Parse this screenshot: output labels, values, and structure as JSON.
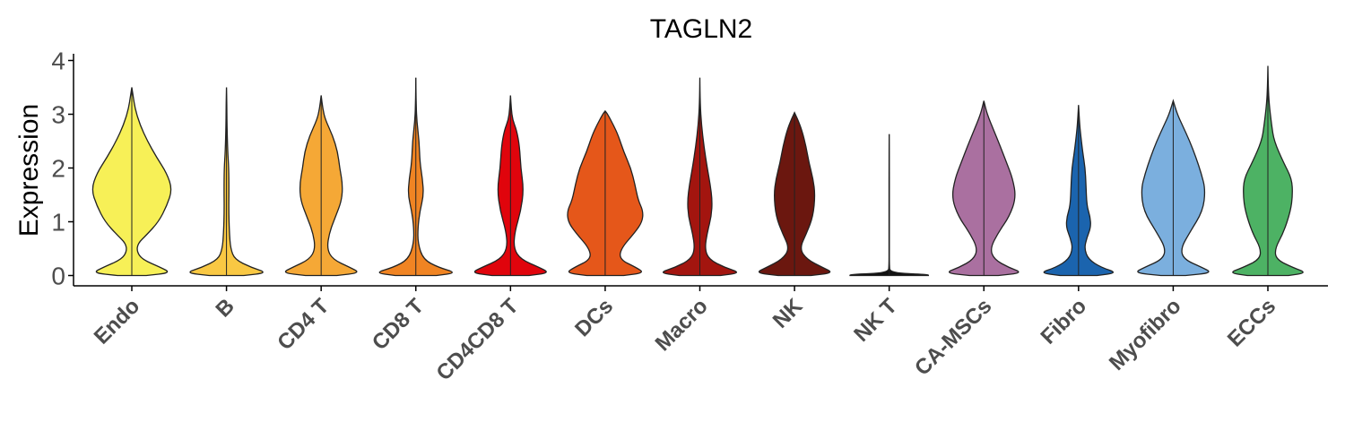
{
  "chart_data": {
    "type": "violin",
    "title": "TAGLN2",
    "ylabel": "Expression",
    "xlabel": "",
    "ylim": [
      -0.15,
      4.15
    ],
    "yticks": [
      0,
      1,
      2,
      3,
      4
    ],
    "grid": false,
    "legend": "none",
    "categories": [
      "Endo",
      "B",
      "CD4 T",
      "CD8 T",
      "CD4CD8 T",
      "DCs",
      "Macro",
      "NK",
      "NK T",
      "CA-MSCs",
      "Fibro",
      "Myofibro",
      "ECCs"
    ],
    "colors": [
      "#F7F057",
      "#F9C843",
      "#F5A836",
      "#F08423",
      "#E0040C",
      "#E5571A",
      "#A3150F",
      "#6B170F",
      "#111111",
      "#AA70A0",
      "#1B64AE",
      "#7BAFDE",
      "#4DB264"
    ],
    "max_values": [
      3.5,
      3.5,
      3.35,
      3.68,
      3.35,
      3.06,
      3.68,
      3.03,
      2.63,
      3.25,
      3.17,
      3.25,
      3.9
    ],
    "profiles": [
      [
        [
          0,
          0.35
        ],
        [
          0.05,
          0.95
        ],
        [
          0.15,
          0.7
        ],
        [
          0.3,
          0.25
        ],
        [
          0.45,
          0.12
        ],
        [
          0.6,
          0.15
        ],
        [
          0.75,
          0.35
        ],
        [
          1.0,
          0.65
        ],
        [
          1.3,
          0.85
        ],
        [
          1.6,
          0.98
        ],
        [
          1.9,
          0.85
        ],
        [
          2.2,
          0.6
        ],
        [
          2.5,
          0.38
        ],
        [
          2.8,
          0.2
        ],
        [
          3.1,
          0.08
        ],
        [
          3.35,
          0.03
        ],
        [
          3.5,
          0.0
        ]
      ],
      [
        [
          0,
          0.42
        ],
        [
          0.05,
          1.0
        ],
        [
          0.15,
          0.6
        ],
        [
          0.3,
          0.2
        ],
        [
          0.5,
          0.1
        ],
        [
          0.8,
          0.07
        ],
        [
          1.2,
          0.055
        ],
        [
          1.6,
          0.06
        ],
        [
          2.0,
          0.055
        ],
        [
          2.3,
          0.03
        ],
        [
          2.8,
          0.012
        ],
        [
          3.2,
          0.008
        ],
        [
          3.5,
          0.0
        ]
      ],
      [
        [
          0,
          0.38
        ],
        [
          0.05,
          0.95
        ],
        [
          0.15,
          0.7
        ],
        [
          0.3,
          0.28
        ],
        [
          0.5,
          0.14
        ],
        [
          0.8,
          0.2
        ],
        [
          1.1,
          0.35
        ],
        [
          1.4,
          0.5
        ],
        [
          1.7,
          0.52
        ],
        [
          2.0,
          0.45
        ],
        [
          2.3,
          0.4
        ],
        [
          2.6,
          0.28
        ],
        [
          2.9,
          0.1
        ],
        [
          3.1,
          0.04
        ],
        [
          3.35,
          0.0
        ]
      ],
      [
        [
          0,
          0.5
        ],
        [
          0.05,
          1.0
        ],
        [
          0.15,
          0.55
        ],
        [
          0.3,
          0.18
        ],
        [
          0.6,
          0.05
        ],
        [
          0.9,
          0.05
        ],
        [
          1.2,
          0.1
        ],
        [
          1.5,
          0.19
        ],
        [
          1.8,
          0.16
        ],
        [
          2.1,
          0.1
        ],
        [
          2.5,
          0.08
        ],
        [
          2.9,
          0.02
        ],
        [
          3.3,
          0.005
        ],
        [
          3.68,
          0.0
        ]
      ],
      [
        [
          0,
          0.45
        ],
        [
          0.05,
          0.95
        ],
        [
          0.15,
          0.7
        ],
        [
          0.3,
          0.25
        ],
        [
          0.5,
          0.08
        ],
        [
          0.8,
          0.1
        ],
        [
          1.2,
          0.25
        ],
        [
          1.6,
          0.32
        ],
        [
          2.0,
          0.25
        ],
        [
          2.4,
          0.22
        ],
        [
          2.7,
          0.15
        ],
        [
          2.9,
          0.05
        ],
        [
          3.1,
          0.02
        ],
        [
          3.35,
          0.0
        ]
      ],
      [
        [
          0,
          0.45
        ],
        [
          0.05,
          0.95
        ],
        [
          0.15,
          0.75
        ],
        [
          0.3,
          0.35
        ],
        [
          0.5,
          0.38
        ],
        [
          0.8,
          0.72
        ],
        [
          1.0,
          0.9
        ],
        [
          1.2,
          0.92
        ],
        [
          1.4,
          0.8
        ],
        [
          1.7,
          0.72
        ],
        [
          2.0,
          0.62
        ],
        [
          2.3,
          0.45
        ],
        [
          2.6,
          0.32
        ],
        [
          2.8,
          0.2
        ],
        [
          3.0,
          0.06
        ],
        [
          3.06,
          0.0
        ]
      ],
      [
        [
          0,
          0.5
        ],
        [
          0.05,
          1.0
        ],
        [
          0.15,
          0.6
        ],
        [
          0.3,
          0.22
        ],
        [
          0.5,
          0.12
        ],
        [
          0.8,
          0.18
        ],
        [
          1.1,
          0.28
        ],
        [
          1.4,
          0.3
        ],
        [
          1.7,
          0.25
        ],
        [
          2.0,
          0.18
        ],
        [
          2.4,
          0.1
        ],
        [
          2.8,
          0.04
        ],
        [
          3.2,
          0.008
        ],
        [
          3.68,
          0.0
        ]
      ],
      [
        [
          0,
          0.4
        ],
        [
          0.05,
          0.95
        ],
        [
          0.15,
          0.68
        ],
        [
          0.3,
          0.3
        ],
        [
          0.5,
          0.12
        ],
        [
          0.8,
          0.3
        ],
        [
          1.1,
          0.45
        ],
        [
          1.5,
          0.5
        ],
        [
          1.8,
          0.45
        ],
        [
          2.1,
          0.35
        ],
        [
          2.4,
          0.28
        ],
        [
          2.7,
          0.18
        ],
        [
          2.9,
          0.08
        ],
        [
          3.03,
          0.0
        ]
      ],
      [
        [
          0,
          0.95
        ],
        [
          0.02,
          0.95
        ],
        [
          0.05,
          0.02
        ],
        [
          0.2,
          0.004
        ],
        [
          0.5,
          0.004
        ],
        [
          1.0,
          0.004
        ],
        [
          1.5,
          0.004
        ],
        [
          2.0,
          0.004
        ],
        [
          2.63,
          0.0
        ]
      ],
      [
        [
          0,
          0.35
        ],
        [
          0.05,
          0.95
        ],
        [
          0.15,
          0.6
        ],
        [
          0.3,
          0.25
        ],
        [
          0.5,
          0.15
        ],
        [
          0.8,
          0.35
        ],
        [
          1.1,
          0.62
        ],
        [
          1.45,
          0.78
        ],
        [
          1.8,
          0.7
        ],
        [
          2.1,
          0.55
        ],
        [
          2.4,
          0.4
        ],
        [
          2.7,
          0.24
        ],
        [
          3.0,
          0.08
        ],
        [
          3.25,
          0.0
        ]
      ],
      [
        [
          0,
          0.45
        ],
        [
          0.05,
          0.95
        ],
        [
          0.15,
          0.55
        ],
        [
          0.3,
          0.24
        ],
        [
          0.5,
          0.14
        ],
        [
          0.7,
          0.2
        ],
        [
          0.9,
          0.3
        ],
        [
          1.1,
          0.28
        ],
        [
          1.3,
          0.2
        ],
        [
          1.7,
          0.18
        ],
        [
          2.0,
          0.16
        ],
        [
          2.3,
          0.1
        ],
        [
          2.7,
          0.04
        ],
        [
          2.9,
          0.02
        ],
        [
          3.17,
          0.0
        ]
      ],
      [
        [
          0,
          0.3
        ],
        [
          0.05,
          0.95
        ],
        [
          0.15,
          0.7
        ],
        [
          0.3,
          0.26
        ],
        [
          0.5,
          0.18
        ],
        [
          0.8,
          0.4
        ],
        [
          1.2,
          0.72
        ],
        [
          1.6,
          0.78
        ],
        [
          1.9,
          0.68
        ],
        [
          2.2,
          0.55
        ],
        [
          2.5,
          0.4
        ],
        [
          2.8,
          0.22
        ],
        [
          3.0,
          0.1
        ],
        [
          3.25,
          0.0
        ]
      ],
      [
        [
          0,
          0.5
        ],
        [
          0.05,
          0.95
        ],
        [
          0.15,
          0.6
        ],
        [
          0.3,
          0.2
        ],
        [
          0.5,
          0.17
        ],
        [
          0.8,
          0.38
        ],
        [
          1.2,
          0.55
        ],
        [
          1.5,
          0.6
        ],
        [
          1.8,
          0.58
        ],
        [
          2.1,
          0.38
        ],
        [
          2.5,
          0.15
        ],
        [
          2.8,
          0.09
        ],
        [
          3.2,
          0.03
        ],
        [
          3.5,
          0.01
        ],
        [
          3.9,
          0.0
        ]
      ]
    ]
  }
}
